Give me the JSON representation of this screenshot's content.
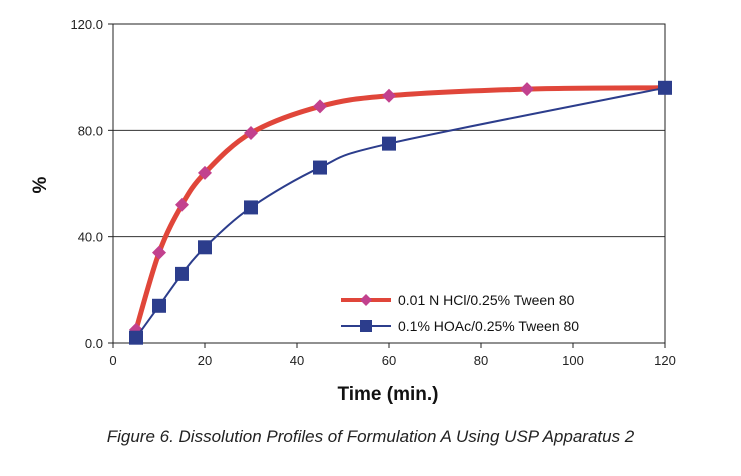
{
  "caption": "Figure 6. Dissolution Profiles of Formulation A Using USP Apparatus 2",
  "colors": {
    "series1": "#e0463a",
    "series1_marker": "#c2418e",
    "series2": "#2c3d8c",
    "grid": "#333333"
  },
  "chart_data": {
    "type": "line",
    "title": "",
    "xlabel": "Time (min.)",
    "ylabel": "%",
    "xlim": [
      0,
      120
    ],
    "ylim": [
      0,
      120
    ],
    "x_ticks": [
      "0",
      "20",
      "40",
      "60",
      "80",
      "100",
      "120"
    ],
    "y_ticks": [
      "0.0",
      "40.0",
      "80.0",
      "120.0"
    ],
    "grid": "horizontal",
    "legend_position": "bottom-right",
    "series": [
      {
        "name": "0.01 N HCl/0.25% Tween 80",
        "marker": "diamond",
        "x": [
          5,
          10,
          15,
          20,
          30,
          45,
          60,
          90,
          120
        ],
        "y": [
          5,
          34,
          52,
          64,
          79,
          89,
          93,
          95.5,
          96
        ]
      },
      {
        "name": "0.1% HOAc/0.25% Tween 80",
        "marker": "square",
        "x": [
          5,
          10,
          15,
          20,
          30,
          45,
          60,
          120
        ],
        "y": [
          2,
          14,
          26,
          36,
          51,
          66,
          75,
          96
        ]
      }
    ]
  }
}
